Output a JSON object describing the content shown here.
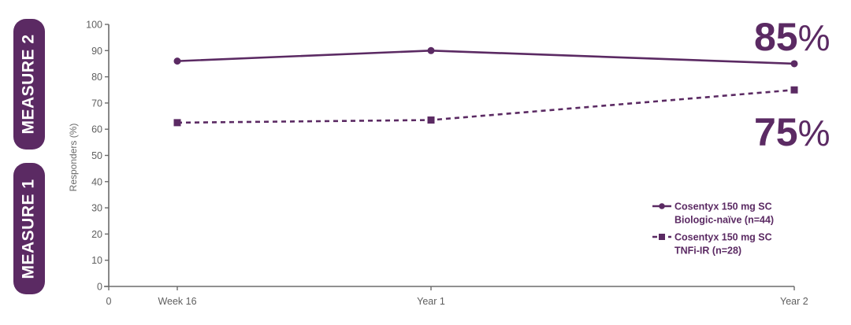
{
  "side_labels": {
    "measure_2": "MEASURE 2",
    "measure_1": "MEASURE 1"
  },
  "highlights": {
    "top_value": "85",
    "top_unit": "%",
    "bottom_value": "75",
    "bottom_unit": "%"
  },
  "colors": {
    "primary": "#5b2a63",
    "axis": "#6b6b6b",
    "text": "#5f5f5f"
  },
  "chart_data": {
    "type": "line",
    "title": "",
    "xlabel": "",
    "ylabel": "Responders (%)",
    "ylim": [
      0,
      100
    ],
    "yticks": [
      0,
      10,
      20,
      30,
      40,
      50,
      60,
      70,
      80,
      90,
      100
    ],
    "x_origin_label": "0",
    "categories": [
      "Week 16",
      "Year 1",
      "Year 2"
    ],
    "grid": false,
    "legend_position": "lower right",
    "series": [
      {
        "name": "Cosentyx 150 mg SC Biologic-naïve (n=44)",
        "legend_line1": "Cosentyx 150 mg SC",
        "legend_line2": "Biologic-naïve (n=44)",
        "style": "solid",
        "marker": "circle",
        "values": [
          86,
          90,
          85
        ]
      },
      {
        "name": "Cosentyx 150 mg SC TNFi-IR (n=28)",
        "legend_line1": "Cosentyx 150 mg SC",
        "legend_line2": "TNFi-IR (n=28)",
        "style": "dashed",
        "marker": "square",
        "values": [
          62.5,
          63.5,
          75
        ]
      }
    ]
  }
}
